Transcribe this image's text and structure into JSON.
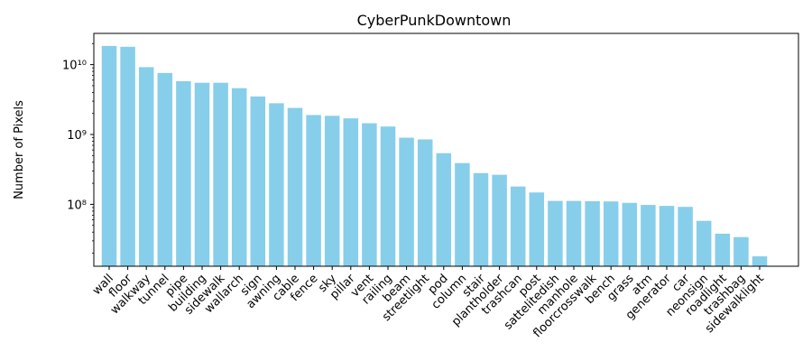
{
  "chart_data": {
    "type": "bar",
    "title": "CyberPunkDowntown",
    "xlabel": "",
    "ylabel": "Number of Pixels",
    "yscale": "log",
    "ylim": [
      13000000,
      28000000000
    ],
    "grid": false,
    "bar_color": "#87ceeb",
    "categories": [
      "wall",
      "floor",
      "walkway",
      "tunnel",
      "pipe",
      "building",
      "sidewalk",
      "wallarch",
      "sign",
      "awning",
      "cable",
      "fence",
      "sky",
      "pillar",
      "vent",
      "railing",
      "beam",
      "streetlight",
      "pod",
      "column",
      "stair",
      "plantholder",
      "trashcan",
      "post",
      "sattelitedish",
      "manhole",
      "floorcrosswalk",
      "bench",
      "grass",
      "atm",
      "generator",
      "car",
      "neonsign",
      "roadlight",
      "trashbag",
      "sidewalklight"
    ],
    "values": [
      18500000000,
      18000000000,
      9200000000,
      7600000000,
      5800000000,
      5500000000,
      5500000000,
      4600000000,
      3500000000,
      2800000000,
      2400000000,
      1900000000,
      1850000000,
      1700000000,
      1450000000,
      1300000000,
      900000000,
      850000000,
      540000000,
      390000000,
      280000000,
      265000000,
      180000000,
      148000000,
      112000000,
      112000000,
      111000000,
      110000000,
      105000000,
      98000000,
      95000000,
      92000000,
      58000000,
      38000000,
      34000000,
      18000000
    ],
    "yticks": [
      {
        "value": 100000000,
        "label": "10⁸"
      },
      {
        "value": 1000000000,
        "label": "10⁹"
      },
      {
        "value": 10000000000,
        "label": "10¹⁰"
      }
    ]
  }
}
